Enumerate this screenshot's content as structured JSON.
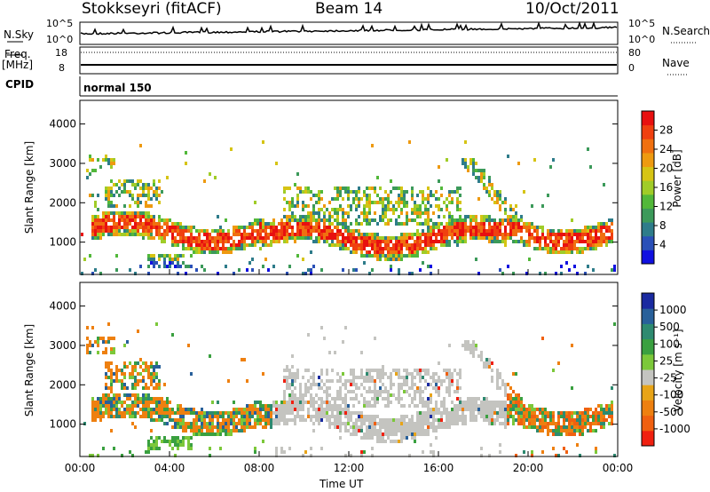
{
  "header": {
    "station": "Stokkseyri (fitACF)",
    "beam": "Beam 14",
    "date": "10/Oct/2011"
  },
  "top_panels": {
    "nsky_label": "N.Sky",
    "nsky_ticks": [
      "10^5",
      "10^0"
    ],
    "nsearch_label": "N.Search",
    "nsearch_ticks": [
      "10^5",
      "10^0"
    ],
    "freq_label": "Freq.",
    "freq_unit": "[MHz]",
    "freq_ticks": [
      "18",
      "8"
    ],
    "nave_label": "Nave",
    "nave_ticks": [
      "80",
      "0"
    ],
    "cpid_label": "CPID",
    "cpid_value": "normal 150"
  },
  "chart_data": [
    {
      "type": "heatmap",
      "name": "power-panel",
      "ylabel": "Slant Range [km]",
      "xlabel": "Time UT",
      "ylim": [
        180,
        4600
      ],
      "xlim_hours": [
        0,
        24
      ],
      "yticks": [
        "4000",
        "3000",
        "2000",
        "1000"
      ],
      "colorbar_label": "Power [dB]",
      "colorbar_ticks": [
        "28",
        "24",
        "20",
        "16",
        "12",
        "8",
        "4"
      ],
      "colorbar_range": [
        0,
        30
      ],
      "colors": [
        "#1010e0",
        "#2a50b8",
        "#2e7c8a",
        "#3c9a5a",
        "#52b83a",
        "#a0cc28",
        "#d6c414",
        "#ee9a10",
        "#f07010",
        "#f04010",
        "#e81010"
      ]
    },
    {
      "type": "heatmap",
      "name": "velocity-panel",
      "ylabel": "Slant Range [km]",
      "xlabel": "Time UT",
      "ylim": [
        180,
        4600
      ],
      "xlim_hours": [
        0,
        24
      ],
      "yticks": [
        "4000",
        "3000",
        "2000",
        "1000"
      ],
      "colorbar_label": "Velocity [m s⁻¹]",
      "colorbar_ticks": [
        "1000",
        "500",
        "100",
        "25",
        "-25",
        "-100",
        "-500",
        "-1000"
      ],
      "colors": [
        "#1a2aa0",
        "#28609a",
        "#2e8a70",
        "#3aa040",
        "#7cc83a",
        "#c4c4c0",
        "#e8a418",
        "#ee8010",
        "#f06010",
        "#f02010"
      ]
    }
  ],
  "xaxis": {
    "ticks": [
      "00:00",
      "04:00",
      "08:00",
      "12:00",
      "16:00",
      "20:00",
      "00:00"
    ],
    "label": "Time UT"
  }
}
